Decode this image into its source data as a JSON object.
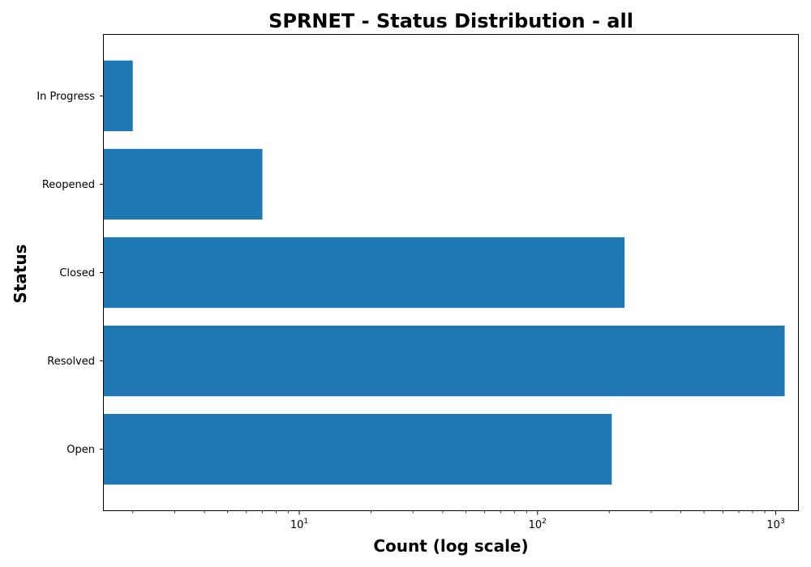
{
  "chart_data": {
    "type": "bar",
    "orientation": "horizontal",
    "title": "SPRNET - Status Distribution - all",
    "xlabel": "Count (log scale)",
    "ylabel": "Status",
    "x_scale": "log",
    "xlim": [
      1.5,
      1250
    ],
    "categories": [
      "Open",
      "Resolved",
      "Closed",
      "Reopened",
      "In Progress"
    ],
    "values": [
      205,
      1090,
      232,
      7,
      2
    ],
    "x_tick_base": "10",
    "x_ticks": [
      {
        "value": 10,
        "exponent": "1"
      },
      {
        "value": 100,
        "exponent": "2"
      },
      {
        "value": 1000,
        "exponent": "3"
      }
    ],
    "x_minor_ticks": [
      2,
      3,
      4,
      5,
      6,
      7,
      8,
      9,
      20,
      30,
      40,
      50,
      60,
      70,
      80,
      90,
      200,
      300,
      400,
      500,
      600,
      700,
      800,
      900
    ],
    "grid": false,
    "legend": "none",
    "bar_color": "#1f77b4"
  }
}
